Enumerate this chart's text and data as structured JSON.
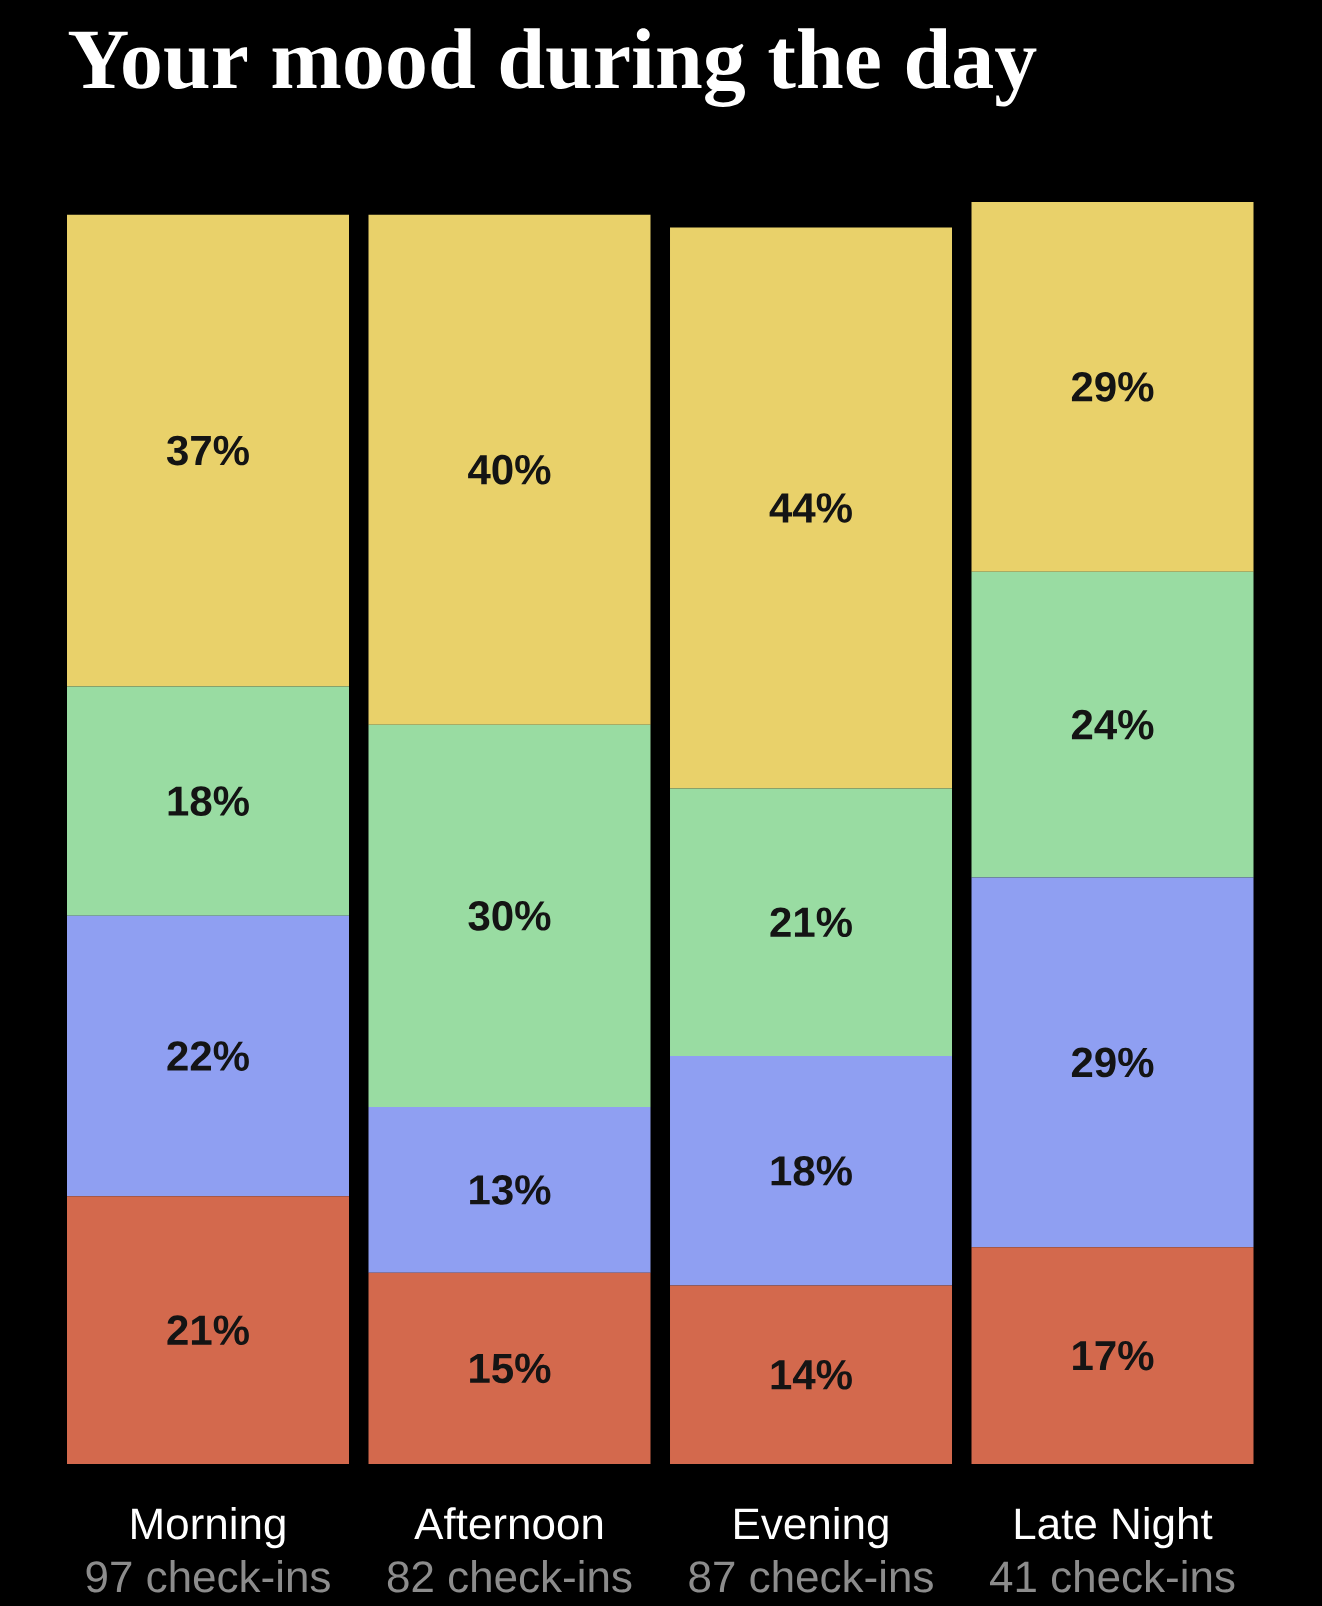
{
  "chart_data": {
    "type": "bar",
    "title": "Your mood during the day",
    "categories": [
      "Morning",
      "Afternoon",
      "Evening",
      "Late Night"
    ],
    "stacked": true,
    "series": [
      {
        "color": "#d3694d",
        "values": [
          21,
          15,
          14,
          17
        ],
        "value_labels": [
          "21%",
          "15%",
          "14%",
          "17%"
        ]
      },
      {
        "color": "#8f9ff2",
        "values": [
          22,
          13,
          18,
          29
        ],
        "value_labels": [
          "22%",
          "13%",
          "18%",
          "29%"
        ]
      },
      {
        "color": "#99dca2",
        "values": [
          18,
          30,
          21,
          24
        ],
        "value_labels": [
          "18%",
          "30%",
          "21%",
          "24%"
        ]
      },
      {
        "color": "#e9d16a",
        "values": [
          37,
          40,
          44,
          29
        ],
        "value_labels": [
          "37%",
          "40%",
          "44%",
          "29%"
        ]
      }
    ],
    "tick_labels": "x",
    "annotations": [
      "97 check-ins",
      "82 check-ins",
      "87 check-ins",
      "41 check-ins"
    ]
  }
}
